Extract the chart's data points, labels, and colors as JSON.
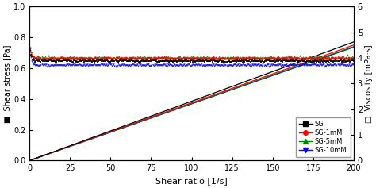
{
  "xlabel": "Shear ratio [1/s]",
  "ylabel_left": "Shear stress [Pa]",
  "ylabel_right": "Viscosity [mPa·s]",
  "xlim": [
    0,
    200
  ],
  "ylim_left": [
    0.0,
    1.0
  ],
  "ylim_right": [
    0,
    6
  ],
  "xticks": [
    0,
    25,
    50,
    75,
    100,
    125,
    150,
    175,
    200
  ],
  "yticks_left": [
    0.0,
    0.2,
    0.4,
    0.6,
    0.8,
    1.0
  ],
  "yticks_right": [
    0,
    1,
    2,
    3,
    4,
    5,
    6
  ],
  "shear_stress": {
    "SG": {
      "slope": 0.00385,
      "color": "black"
    },
    "SG-1mM": {
      "slope": 0.00375,
      "color": "red"
    },
    "SG-5mM": {
      "slope": 0.0037,
      "color": "green"
    },
    "SG-10mM": {
      "slope": 0.00368,
      "color": "blue"
    }
  },
  "viscosity": {
    "SG": {
      "plateau": 3.88,
      "v_init": 4.72,
      "color": "black",
      "marker": "s"
    },
    "SG-1mM": {
      "plateau": 3.98,
      "v_init": 4.72,
      "color": "red",
      "marker": "o"
    },
    "SG-5mM": {
      "plateau": 4.02,
      "v_init": 4.72,
      "color": "green",
      "marker": "^"
    },
    "SG-10mM": {
      "plateau": 3.72,
      "v_init": 4.72,
      "color": "blue",
      "marker": "v"
    }
  },
  "legend_labels": [
    "SG",
    "SG-1mM",
    "SG-5mM",
    "SG-10mM"
  ],
  "legend_colors": [
    "black",
    "red",
    "green",
    "blue"
  ],
  "legend_markers": [
    "s",
    "o",
    "^",
    "v"
  ]
}
